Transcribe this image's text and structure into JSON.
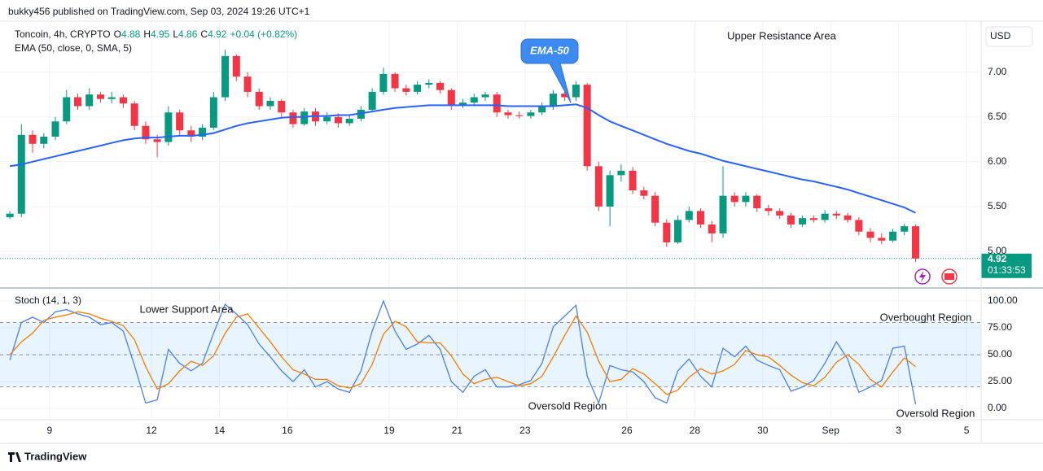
{
  "header": "bukky456 published on TradingView.com, Sep 03, 2024 19:26 UTC+1",
  "footer": "TradingView",
  "chart_data": [
    {
      "type": "candlestick",
      "symbol": "Toncoin, 4h, CRYPTO",
      "ohlc": [
        {
          "label": "O",
          "value": 4.88
        },
        {
          "label": "H",
          "value": 4.95
        },
        {
          "label": "L",
          "value": 4.86
        },
        {
          "label": "C",
          "value": 4.92
        }
      ],
      "change": "+0.04 (+0.82%)",
      "currency": "USD",
      "last_price": 4.92,
      "countdown": "01:33:53",
      "annotations": [
        "Upper Resistance Area",
        "EMA-50"
      ],
      "up_color": "#089981",
      "down_color": "#f23645",
      "xlim": [
        7.78,
        36.43
      ],
      "ylim": [
        4.6,
        7.56
      ],
      "yticks": [
        {
          "value": 5,
          "label": "5.00"
        },
        {
          "value": 5.5,
          "label": "5.50"
        },
        {
          "value": 6,
          "label": "6.00"
        },
        {
          "value": 6.5,
          "label": "6.50"
        },
        {
          "value": 7,
          "label": "7.00"
        }
      ],
      "grid": true,
      "x": [
        7.83,
        8.17,
        8.5,
        8.83,
        9.17,
        9.5,
        9.83,
        10.17,
        10.5,
        10.83,
        11.17,
        11.5,
        11.83,
        12.17,
        12.5,
        12.83,
        13.17,
        13.5,
        13.83,
        14.17,
        14.5,
        14.83,
        15.17,
        15.5,
        15.83,
        16.17,
        16.5,
        16.83,
        17.17,
        17.5,
        17.83,
        18.17,
        18.5,
        18.83,
        19.17,
        19.5,
        19.83,
        20.17,
        20.5,
        20.83,
        21.17,
        21.5,
        21.83,
        22.17,
        22.5,
        22.83,
        23.17,
        23.5,
        23.83,
        24.17,
        24.5,
        24.83,
        25.17,
        25.5,
        25.83,
        26.17,
        26.5,
        26.83,
        27.17,
        27.5,
        27.83,
        28.17,
        28.5,
        28.83,
        29.17,
        29.5,
        29.83,
        30.17,
        30.5,
        30.83,
        31.17,
        31.5,
        31.83,
        32.17,
        32.5,
        32.83,
        33.17,
        33.5,
        33.83,
        34.17,
        34.5
      ],
      "open": [
        5.38,
        5.42,
        6.3,
        6.2,
        6.28,
        6.45,
        6.72,
        6.62,
        6.75,
        6.7,
        6.72,
        6.65,
        6.4,
        6.25,
        6.22,
        6.55,
        6.35,
        6.28,
        6.38,
        6.72,
        7.18,
        6.95,
        6.78,
        6.62,
        6.68,
        6.55,
        6.42,
        6.56,
        6.45,
        6.5,
        6.43,
        6.48,
        6.58,
        6.78,
        6.98,
        6.82,
        6.78,
        6.86,
        6.88,
        6.8,
        6.63,
        6.66,
        6.72,
        6.75,
        6.55,
        6.52,
        6.51,
        6.55,
        6.62,
        6.76,
        6.72,
        6.86,
        5.95,
        5.5,
        5.85,
        5.9,
        5.68,
        5.62,
        5.32,
        5.1,
        5.35,
        5.45,
        5.3,
        5.2,
        5.62,
        5.55,
        5.62,
        5.48,
        5.45,
        5.4,
        5.3,
        5.37,
        5.35,
        5.42,
        5.4,
        5.35,
        5.22,
        5.15,
        5.12,
        5.22,
        5.28
      ],
      "high": [
        5.45,
        6.42,
        6.35,
        6.32,
        6.5,
        6.8,
        6.76,
        6.82,
        6.78,
        6.78,
        6.75,
        6.68,
        6.45,
        6.3,
        6.62,
        6.58,
        6.4,
        6.42,
        6.78,
        7.25,
        7.2,
        7.0,
        6.82,
        6.72,
        6.7,
        6.58,
        6.6,
        6.6,
        6.55,
        6.54,
        6.52,
        6.62,
        6.82,
        7.05,
        7.0,
        6.86,
        6.9,
        6.92,
        6.9,
        6.82,
        6.7,
        6.76,
        6.78,
        6.78,
        6.58,
        6.56,
        6.58,
        6.66,
        6.8,
        6.8,
        6.9,
        6.88,
        6.0,
        5.9,
        5.97,
        5.94,
        5.72,
        5.66,
        5.36,
        5.4,
        5.5,
        5.48,
        5.34,
        5.95,
        5.66,
        5.66,
        5.64,
        5.52,
        5.48,
        5.43,
        5.4,
        5.4,
        5.46,
        5.45,
        5.43,
        5.38,
        5.26,
        5.2,
        5.25,
        5.31,
        5.3
      ],
      "low": [
        5.36,
        5.38,
        6.1,
        6.15,
        6.24,
        6.42,
        6.58,
        6.58,
        6.66,
        6.65,
        6.6,
        6.35,
        6.2,
        6.05,
        6.18,
        6.3,
        6.22,
        6.24,
        6.35,
        6.68,
        6.9,
        6.72,
        6.58,
        6.58,
        6.5,
        6.38,
        6.4,
        6.4,
        6.42,
        6.38,
        6.4,
        6.45,
        6.55,
        6.75,
        6.78,
        6.74,
        6.75,
        6.82,
        6.76,
        6.58,
        6.6,
        6.62,
        6.68,
        6.5,
        6.48,
        6.48,
        6.48,
        6.52,
        6.58,
        6.68,
        6.68,
        5.9,
        5.45,
        5.28,
        5.78,
        5.64,
        5.58,
        5.28,
        5.05,
        5.08,
        5.32,
        5.26,
        5.1,
        5.15,
        5.5,
        5.5,
        5.44,
        5.4,
        5.36,
        5.26,
        5.27,
        5.32,
        5.32,
        5.36,
        5.32,
        5.18,
        5.1,
        5.08,
        5.1,
        5.18,
        4.88
      ],
      "close": [
        5.42,
        6.3,
        6.2,
        6.28,
        6.45,
        6.72,
        6.62,
        6.75,
        6.7,
        6.72,
        6.65,
        6.4,
        6.25,
        6.22,
        6.55,
        6.35,
        6.28,
        6.38,
        6.72,
        7.18,
        6.95,
        6.78,
        6.62,
        6.68,
        6.55,
        6.42,
        6.56,
        6.45,
        6.5,
        6.43,
        6.48,
        6.58,
        6.78,
        6.98,
        6.82,
        6.78,
        6.86,
        6.88,
        6.8,
        6.63,
        6.66,
        6.72,
        6.75,
        6.55,
        6.52,
        6.51,
        6.55,
        6.62,
        6.76,
        6.72,
        6.86,
        5.95,
        5.5,
        5.85,
        5.9,
        5.68,
        5.62,
        5.32,
        5.1,
        5.35,
        5.45,
        5.3,
        5.2,
        5.62,
        5.55,
        5.62,
        5.48,
        5.45,
        5.4,
        5.3,
        5.37,
        5.35,
        5.42,
        5.4,
        5.35,
        5.22,
        5.15,
        5.12,
        5.22,
        5.28,
        4.92
      ],
      "series": [
        {
          "name": "EMA (50, close, 0, SMA, 5)",
          "color": "#2962ff",
          "values": [
            5.95,
            5.97,
            6.0,
            6.03,
            6.06,
            6.09,
            6.12,
            6.15,
            6.18,
            6.21,
            6.24,
            6.26,
            6.27,
            6.27,
            6.28,
            6.29,
            6.29,
            6.3,
            6.32,
            6.36,
            6.4,
            6.43,
            6.45,
            6.47,
            6.49,
            6.5,
            6.5,
            6.51,
            6.51,
            6.52,
            6.52,
            6.54,
            6.56,
            6.58,
            6.6,
            6.61,
            6.62,
            6.63,
            6.63,
            6.63,
            6.63,
            6.63,
            6.63,
            6.63,
            6.62,
            6.62,
            6.62,
            6.62,
            6.62,
            6.63,
            6.64,
            6.6,
            6.52,
            6.45,
            6.4,
            6.35,
            6.3,
            6.25,
            6.2,
            6.16,
            6.12,
            6.09,
            6.05,
            6.01,
            5.98,
            5.95,
            5.92,
            5.89,
            5.86,
            5.83,
            5.8,
            5.78,
            5.75,
            5.72,
            5.69,
            5.65,
            5.61,
            5.57,
            5.53,
            5.49,
            5.43
          ]
        }
      ]
    },
    {
      "type": "line",
      "title": "Stoch (14, 1, 3)",
      "annotations": [
        "Lower Support Area",
        "Overbought Region",
        "Oversold Region",
        "Oversold Region"
      ],
      "bands": [
        80,
        50,
        20
      ],
      "band_color": "rgba(33,150,243,0.1)",
      "xlim": [
        7.78,
        36.43
      ],
      "ylim": [
        -9.8,
        111.4
      ],
      "yticks": [
        {
          "value": 0,
          "label": "0.00"
        },
        {
          "value": 25,
          "label": "25.00"
        },
        {
          "value": 50,
          "label": "50.00"
        },
        {
          "value": 75,
          "label": "75.00"
        },
        {
          "value": 100,
          "label": "100.00"
        }
      ],
      "xticks": [
        9,
        12,
        14,
        16,
        19,
        21,
        23,
        26,
        28,
        30,
        {
          "value": 32,
          "label": "Sep"
        },
        {
          "value": 34,
          "label": "3"
        },
        {
          "value": 36,
          "label": "5"
        }
      ],
      "grid": true,
      "x": [
        7.83,
        8.17,
        8.5,
        8.83,
        9.17,
        9.5,
        9.83,
        10.17,
        10.5,
        10.83,
        11.17,
        11.5,
        11.83,
        12.17,
        12.5,
        12.83,
        13.17,
        13.5,
        13.83,
        14.17,
        14.5,
        14.83,
        15.17,
        15.5,
        15.83,
        16.17,
        16.5,
        16.83,
        17.17,
        17.5,
        17.83,
        18.17,
        18.5,
        18.83,
        19.17,
        19.5,
        19.83,
        20.17,
        20.5,
        20.83,
        21.17,
        21.5,
        21.83,
        22.17,
        22.5,
        22.83,
        23.17,
        23.5,
        23.83,
        24.17,
        24.5,
        24.83,
        25.17,
        25.5,
        25.83,
        26.17,
        26.5,
        26.83,
        27.17,
        27.5,
        27.83,
        28.17,
        28.5,
        28.83,
        29.17,
        29.5,
        29.83,
        30.17,
        30.5,
        30.83,
        31.17,
        31.5,
        31.83,
        32.17,
        32.5,
        32.83,
        33.17,
        33.5,
        33.83,
        34.17,
        34.5
      ],
      "series": [
        {
          "color": "#4a7ff0",
          "values": [
            45,
            80,
            85,
            80,
            90,
            92,
            88,
            85,
            78,
            80,
            72,
            40,
            5,
            8,
            55,
            42,
            35,
            42,
            70,
            97,
            88,
            78,
            60,
            48,
            35,
            25,
            36,
            20,
            25,
            18,
            15,
            35,
            72,
            100,
            72,
            55,
            60,
            68,
            55,
            25,
            15,
            30,
            36,
            20,
            20,
            22,
            26,
            42,
            76,
            86,
            96,
            30,
            5,
            40,
            36,
            34,
            25,
            10,
            5,
            35,
            46,
            30,
            20,
            56,
            48,
            58,
            45,
            40,
            36,
            16,
            20,
            26,
            42,
            62,
            46,
            15,
            20,
            26,
            56,
            58,
            4
          ]
        },
        {
          "color": "#f57c00",
          "values": [
            50,
            62,
            70,
            82,
            85,
            87,
            90,
            88,
            84,
            81,
            77,
            64,
            39,
            18,
            23,
            35,
            44,
            40,
            49,
            70,
            85,
            88,
            75,
            62,
            48,
            36,
            32,
            27,
            27,
            21,
            19,
            23,
            41,
            69,
            81,
            76,
            62,
            61,
            61,
            49,
            32,
            23,
            27,
            29,
            25,
            21,
            23,
            30,
            48,
            68,
            86,
            71,
            44,
            25,
            27,
            37,
            32,
            23,
            13,
            17,
            29,
            37,
            32,
            35,
            41,
            54,
            50,
            48,
            40,
            31,
            24,
            21,
            29,
            43,
            50,
            41,
            27,
            20,
            34,
            47,
            39
          ]
        }
      ]
    }
  ]
}
